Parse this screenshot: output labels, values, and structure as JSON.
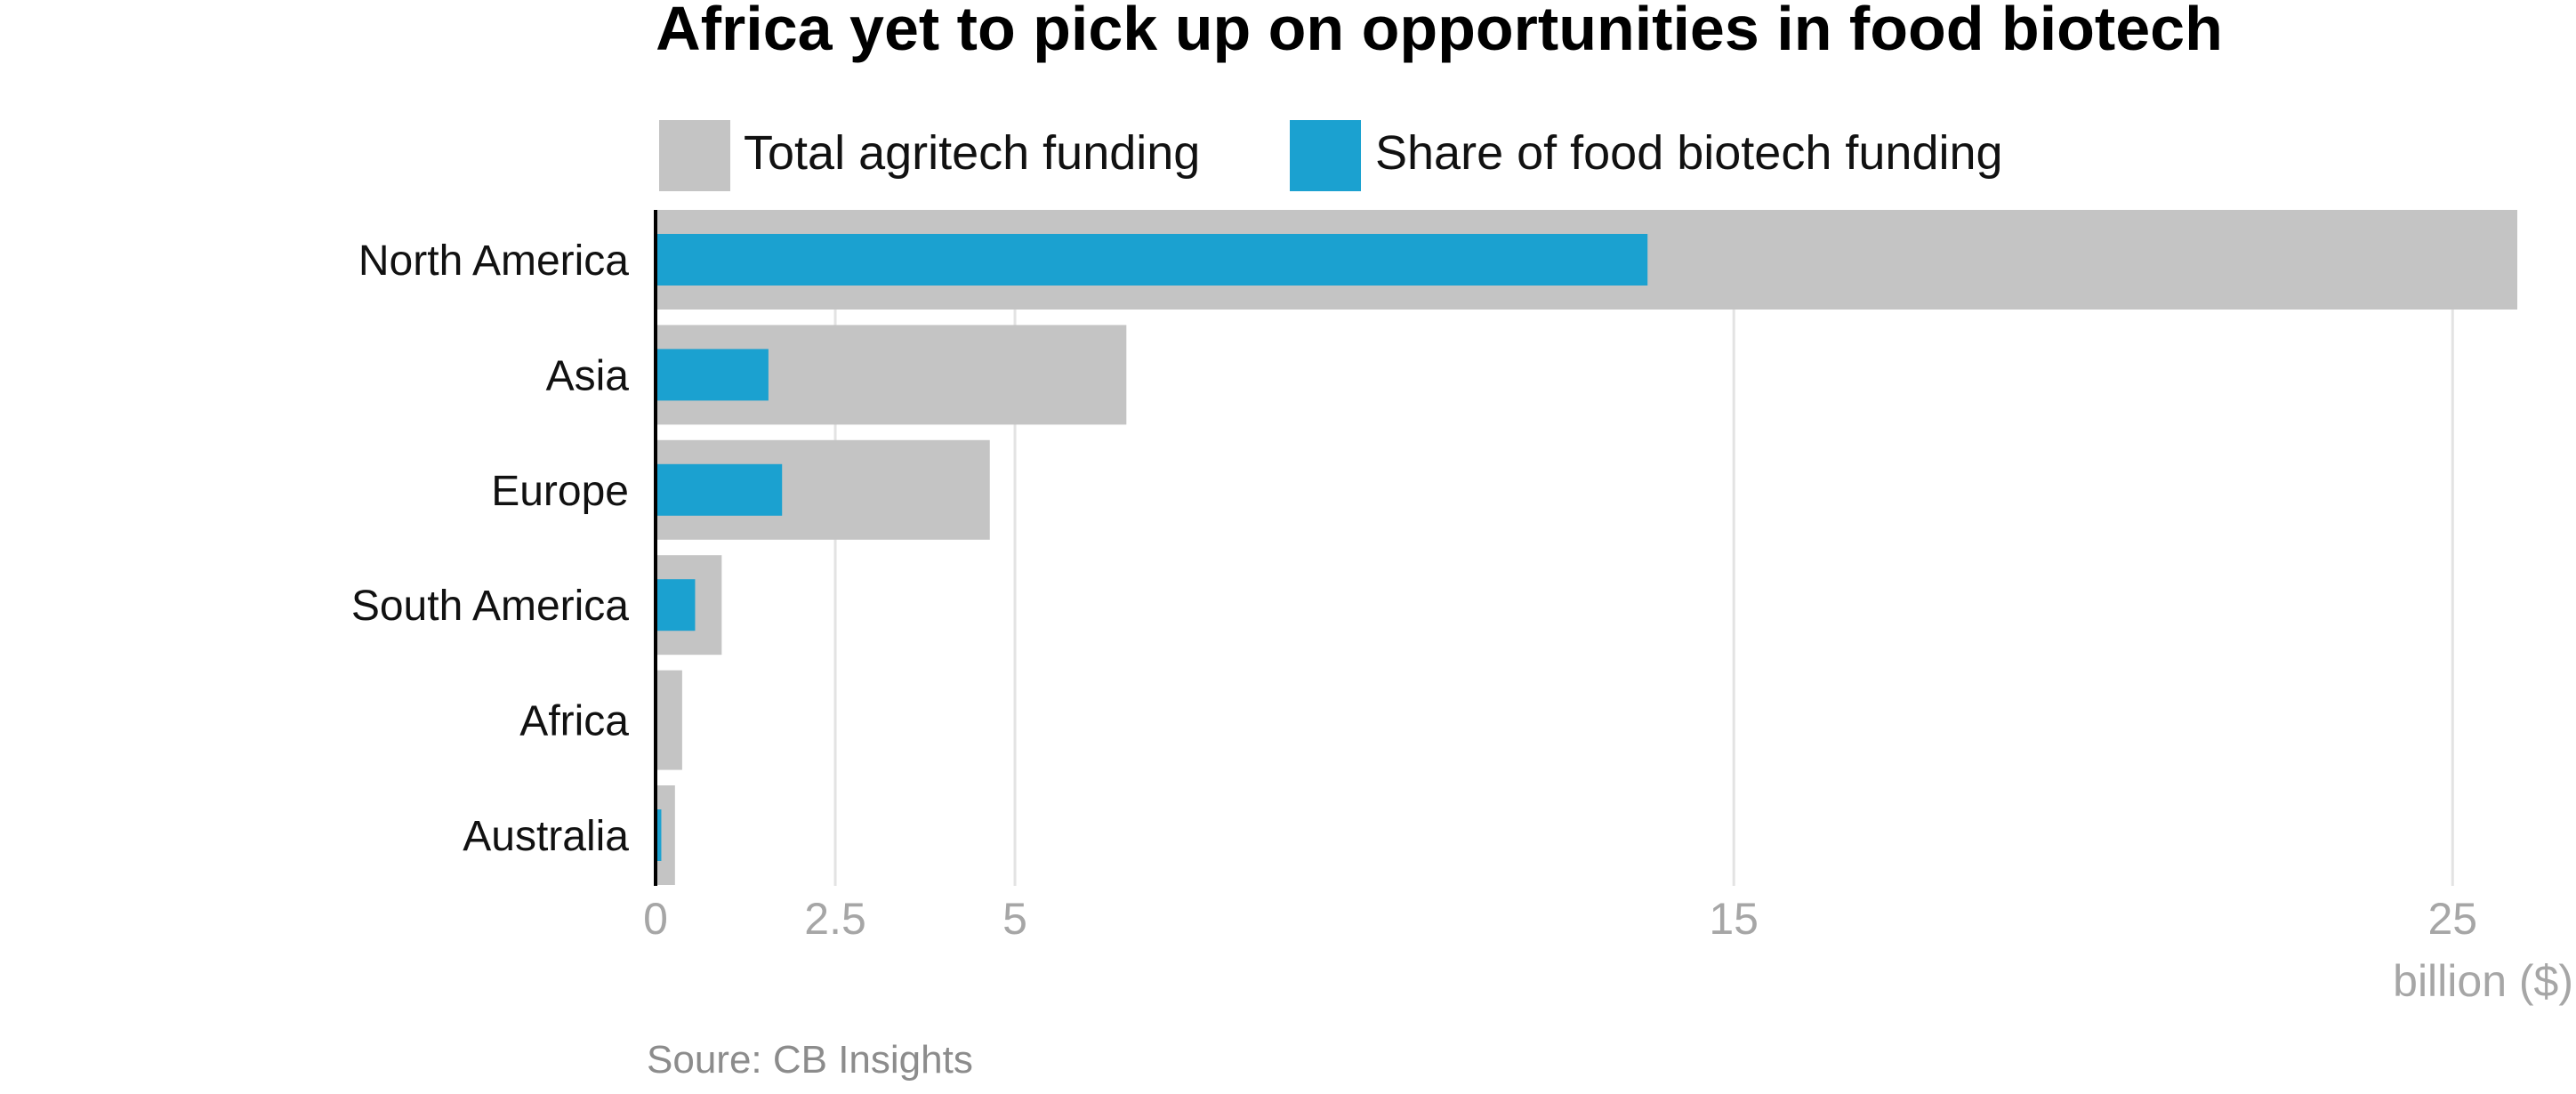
{
  "chart_data": {
    "type": "bar",
    "orientation": "horizontal",
    "title": "Africa yet to pick up on opportunities in food biotech",
    "categories": [
      "North America",
      "Asia",
      "Europe",
      "South America",
      "Africa",
      "Australia"
    ],
    "series": [
      {
        "name": "Total agritech funding",
        "color": "#c4c4c4",
        "values": [
          25.9,
          6.55,
          4.65,
          0.92,
          0.37,
          0.27
        ]
      },
      {
        "name": "Share of food biotech funding",
        "color": "#1ba1d0",
        "values": [
          13.8,
          1.57,
          1.76,
          0.55,
          0.0,
          0.08
        ]
      }
    ],
    "x_ticks": [
      "0",
      "2.5",
      "5",
      "15",
      "25"
    ],
    "x_tick_values": [
      0,
      2.5,
      5,
      15,
      25
    ],
    "xlabel": "billion ($)",
    "xlim": [
      0,
      25.9
    ],
    "grid": "vertical",
    "legend": "top",
    "source": "Soure: CB Insights"
  }
}
